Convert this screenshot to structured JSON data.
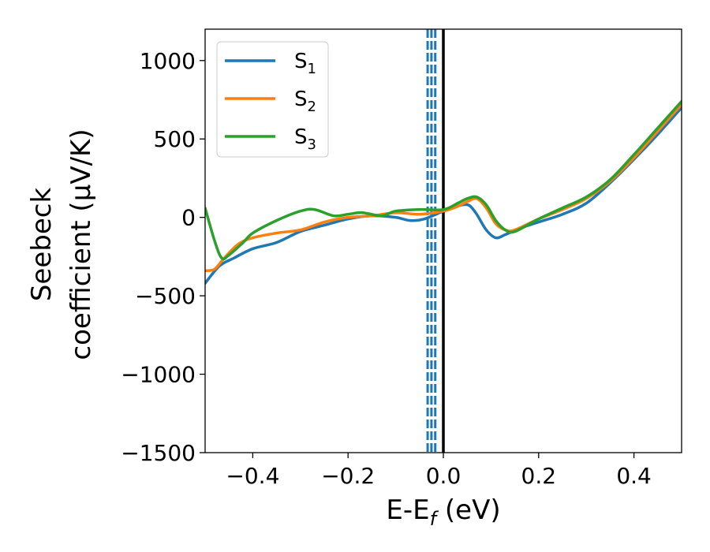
{
  "chart_data": {
    "type": "line",
    "xlabel": {
      "main": "E-E",
      "sub": "f",
      "unit": " (eV)"
    },
    "ylabel": {
      "line1": "Seebeck",
      "line2": "coefficient  (μV/K)"
    },
    "xlim": [
      -0.5,
      0.5
    ],
    "ylim": [
      -1500,
      1200
    ],
    "xticks": [
      -0.4,
      -0.2,
      0.0,
      0.2,
      0.4
    ],
    "xtick_labels": [
      "−0.4",
      "−0.2",
      "0.0",
      "0.2",
      "0.4"
    ],
    "yticks": [
      -1500,
      -1000,
      -500,
      0,
      500,
      1000
    ],
    "ytick_labels": [
      "−1500",
      "−1000",
      "−500",
      "0",
      "500",
      "1000"
    ],
    "grid": false,
    "legend_position": "top-left",
    "vlines": [
      {
        "x": -0.033,
        "style": "dashed",
        "color": "#1f77b4"
      },
      {
        "x": -0.025,
        "style": "dashed",
        "color": "#1f77b4"
      },
      {
        "x": -0.017,
        "style": "dashed",
        "color": "#1f77b4"
      },
      {
        "x": 0.0,
        "style": "solid",
        "color": "#000000"
      }
    ],
    "series": [
      {
        "name": "S",
        "sub": "1",
        "color": "#1f77b4",
        "x": [
          -0.5,
          -0.47,
          -0.44,
          -0.4,
          -0.35,
          -0.3,
          -0.25,
          -0.2,
          -0.15,
          -0.1,
          -0.07,
          -0.04,
          0.0,
          0.02,
          0.04,
          0.055,
          0.07,
          0.09,
          0.11,
          0.13,
          0.16,
          0.2,
          0.25,
          0.3,
          0.35,
          0.4,
          0.45,
          0.5
        ],
        "y": [
          -420,
          -310,
          -260,
          -200,
          -160,
          -90,
          -50,
          -10,
          10,
          0,
          -20,
          -10,
          40,
          60,
          80,
          75,
          20,
          -80,
          -130,
          -110,
          -70,
          -30,
          20,
          90,
          220,
          370,
          530,
          700
        ]
      },
      {
        "name": "S",
        "sub": "2",
        "color": "#ff7f0e",
        "x": [
          -0.5,
          -0.48,
          -0.46,
          -0.43,
          -0.4,
          -0.35,
          -0.3,
          -0.25,
          -0.2,
          -0.15,
          -0.1,
          -0.05,
          0.0,
          0.03,
          0.05,
          0.07,
          0.09,
          0.11,
          0.13,
          0.15,
          0.2,
          0.25,
          0.3,
          0.35,
          0.4,
          0.45,
          0.5
        ],
        "y": [
          -340,
          -330,
          -260,
          -170,
          -130,
          -100,
          -80,
          -30,
          0,
          10,
          30,
          20,
          40,
          70,
          100,
          120,
          60,
          -40,
          -80,
          -80,
          -10,
          50,
          120,
          230,
          380,
          550,
          720
        ]
      },
      {
        "name": "S",
        "sub": "3",
        "color": "#2ca02c",
        "x": [
          -0.5,
          -0.48,
          -0.465,
          -0.45,
          -0.42,
          -0.4,
          -0.35,
          -0.3,
          -0.27,
          -0.23,
          -0.2,
          -0.17,
          -0.13,
          -0.1,
          -0.05,
          0.0,
          0.03,
          0.05,
          0.07,
          0.09,
          0.11,
          0.13,
          0.15,
          0.2,
          0.25,
          0.3,
          0.35,
          0.4,
          0.45,
          0.5
        ],
        "y": [
          60,
          -150,
          -260,
          -240,
          -160,
          -100,
          -20,
          40,
          50,
          10,
          20,
          30,
          10,
          40,
          50,
          50,
          90,
          120,
          130,
          80,
          -20,
          -80,
          -90,
          -10,
          60,
          130,
          240,
          400,
          570,
          740
        ]
      }
    ]
  }
}
